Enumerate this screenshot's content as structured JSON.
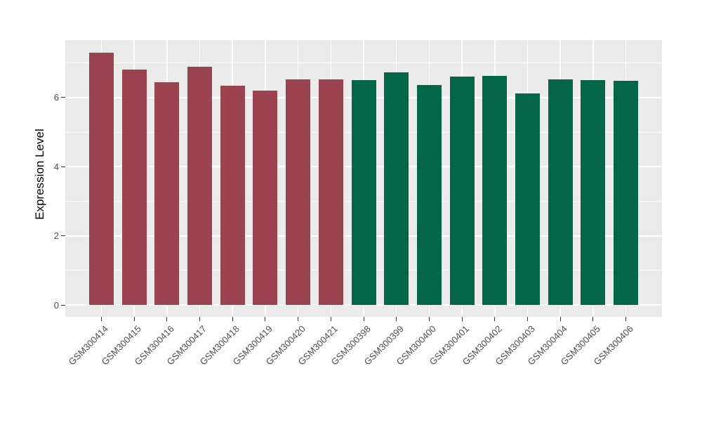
{
  "chart_data": {
    "type": "bar",
    "title": "",
    "xlabel": "",
    "ylabel": "Expression Level",
    "y_ticks": [
      0,
      2,
      4,
      6
    ],
    "y_minor_gridlines": [
      1,
      3,
      5,
      7
    ],
    "ylim": [
      -0.37,
      7.67
    ],
    "grid": "on",
    "legend_position": "none",
    "categories": [
      "GSM300414",
      "GSM300415",
      "GSM300416",
      "GSM300417",
      "GSM300418",
      "GSM300419",
      "GSM300420",
      "GSM300421",
      "GSM300398",
      "GSM300399",
      "GSM300400",
      "GSM300401",
      "GSM300402",
      "GSM300403",
      "GSM300404",
      "GSM300405",
      "GSM300406"
    ],
    "values": [
      7.31,
      6.81,
      6.44,
      6.9,
      6.34,
      6.2,
      6.52,
      6.52,
      6.5,
      6.74,
      6.37,
      6.6,
      6.64,
      6.12,
      6.52,
      6.5,
      6.48
    ],
    "groups": [
      "A",
      "A",
      "A",
      "A",
      "A",
      "A",
      "A",
      "A",
      "B",
      "B",
      "B",
      "B",
      "B",
      "B",
      "B",
      "B",
      "B"
    ],
    "group_colors": {
      "A": "#9B4450",
      "B": "#036649"
    },
    "panel_background": "#EBEBEB",
    "gridline_color": "#FFFFFF",
    "axis_text_color": "#4D4D4D",
    "tick_mark_color": "#333333"
  }
}
